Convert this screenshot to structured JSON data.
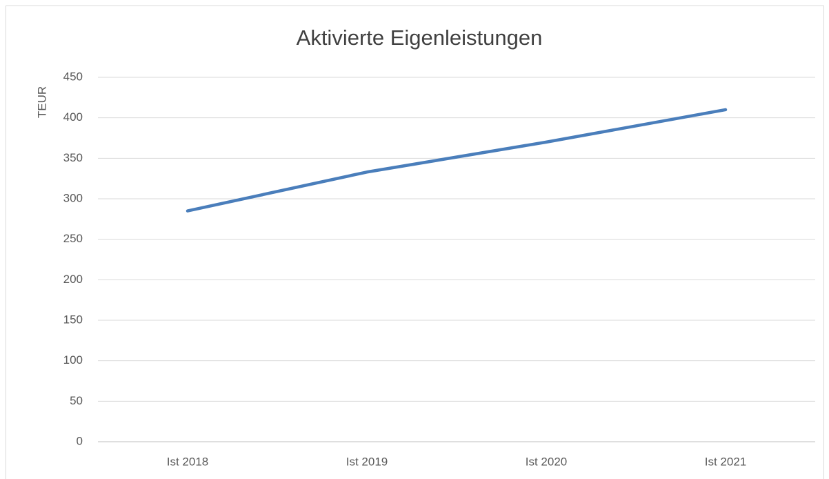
{
  "chart_data": {
    "type": "line",
    "title": "Aktivierte Eigenleistungen",
    "y_label": "TEUR",
    "categories": [
      "Ist 2018",
      "Ist 2019",
      "Ist 2020",
      "Ist 2021"
    ],
    "series": [
      {
        "name": "Aktivierte Eigenleistungen",
        "color": "#4a7ebb",
        "values": [
          285,
          333,
          370,
          410
        ]
      }
    ],
    "ylim": [
      0,
      450
    ],
    "yticks": [
      0,
      50,
      100,
      150,
      200,
      250,
      300,
      350,
      400,
      450
    ],
    "grid": true
  }
}
